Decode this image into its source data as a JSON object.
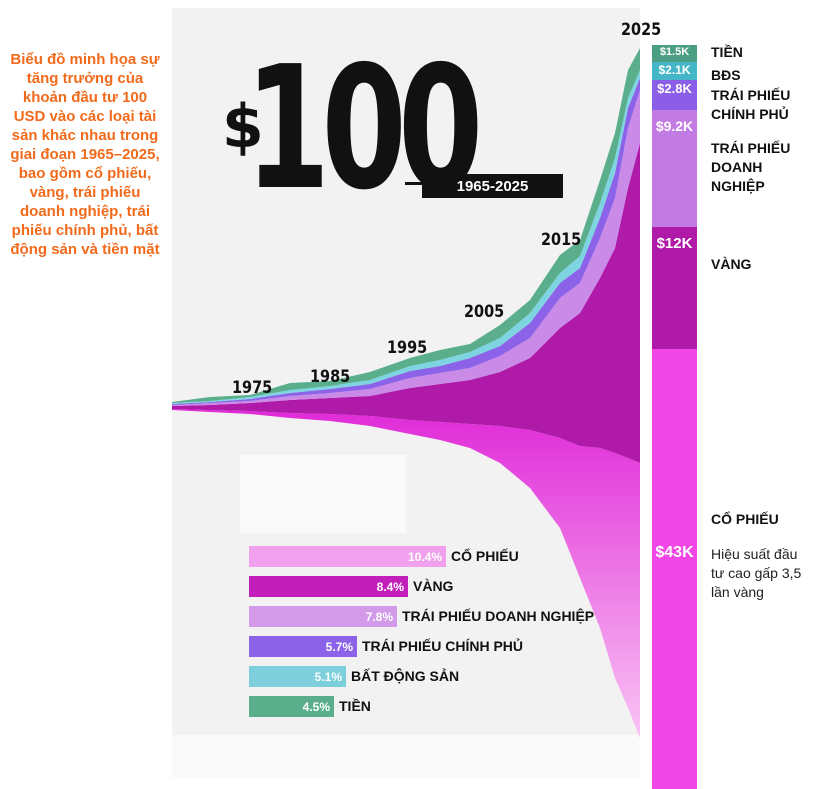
{
  "caption": "Biểu đồ minh họa sự tăng trưởng của khoản đầu tư 100 USD vào các loại tài sản khác nhau trong giai đoạn 1965–2025, bao gồm cổ phiếu, vàng, trái phiếu doanh nghiệp, trái phiếu chính phủ, bất động sản và tiền mặt",
  "headline": {
    "dollar": "$",
    "amount": "100",
    "period": "1965-2025"
  },
  "colors": {
    "stocks": "#f046e6",
    "gold": "#b01aa8",
    "corp_bonds": "#c98ae8",
    "gov_bonds": "#8b62e8",
    "real_estate": "#7ed4e0",
    "cash": "#5aae8c"
  },
  "final_values": [
    {
      "label": "TIỀN",
      "value": "$1.5K",
      "color": "#4a9e82"
    },
    {
      "label": "BĐS",
      "value": "$2.1K",
      "color": "#45b6c8"
    },
    {
      "label": "TRÁI PHIẾU CHÍNH PHỦ",
      "value": "$2.8K",
      "color": "#8a5ee6"
    },
    {
      "label": "TRÁI PHIẾU DOANH NGHIỆP",
      "value": "$9.2K",
      "color": "#c27be2"
    },
    {
      "label": "VÀNG",
      "value": "$12K",
      "color": "#b01aa8"
    },
    {
      "label": "CỔ PHIẾU",
      "value": "$43K",
      "color": "#f046e6"
    }
  ],
  "note": "Hiệu suất đầu tư cao gấp 3,5 lần vàng",
  "chart_data": [
    {
      "type": "area",
      "title": "$100 1965-2025",
      "x_ticks": [
        1975,
        1985,
        1995,
        2005,
        2015,
        2025
      ],
      "tick_labels": [
        "1975",
        "1985",
        "1995",
        "2005",
        "2015",
        "2025"
      ],
      "series": [
        {
          "name": "CỔ PHIẾU",
          "final_value": 43000
        },
        {
          "name": "VÀNG",
          "final_value": 12000
        },
        {
          "name": "TRÁI PHIẾU DOANH NGHIỆP",
          "final_value": 9200
        },
        {
          "name": "TRÁI PHIẾU CHÍNH PHỦ",
          "final_value": 2800
        },
        {
          "name": "BẤT ĐỘNG SẢN",
          "final_value": 2100
        },
        {
          "name": "TIỀN",
          "final_value": 1500
        }
      ],
      "xlim": [
        1965,
        2025
      ]
    },
    {
      "type": "bar",
      "categories": [
        "CỔ PHIẾU",
        "VÀNG",
        "TRÁI PHIẾU DOANH NGHIỆP",
        "TRÁI PHIẾU CHÍNH PHỦ",
        "BẤT ĐỘNG SẢN",
        "TIỀN"
      ],
      "values": [
        10.4,
        8.4,
        7.8,
        5.7,
        5.1,
        4.5
      ],
      "value_labels": [
        "10.4%",
        "8.4%",
        "7.8%",
        "5.7%",
        "5.1%",
        "4.5%"
      ],
      "colors": [
        "#f0a0ec",
        "#c21fba",
        "#d29ae8",
        "#8b62e8",
        "#7ecfdc",
        "#5aae8c"
      ],
      "max_value": 10.4
    }
  ]
}
